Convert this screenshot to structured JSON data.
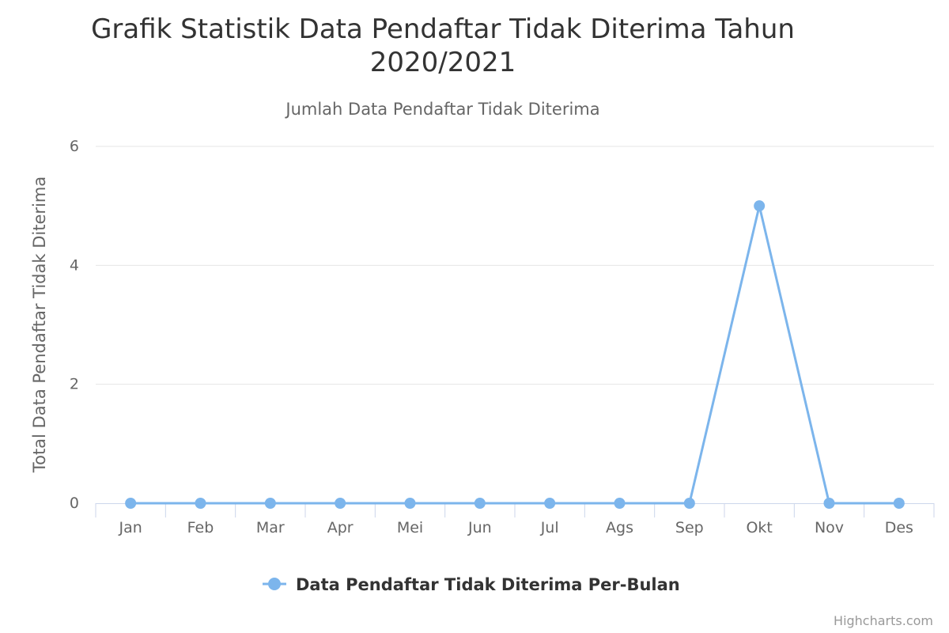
{
  "chart_data": {
    "type": "line",
    "title": "Grafik Statistik Data Pendaftar Tidak Diterima Tahun 2020/2021",
    "title_lines": [
      "Grafik Statistik Data Pendaftar Tidak Diterima Tahun",
      "2020/2021"
    ],
    "subtitle": "Jumlah Data Pendaftar Tidak Diterima",
    "xlabel": "",
    "ylabel": "Total Data Pendaftar Tidak Diterima",
    "categories": [
      "Jan",
      "Feb",
      "Mar",
      "Apr",
      "Mei",
      "Jun",
      "Jul",
      "Ags",
      "Sep",
      "Okt",
      "Nov",
      "Des"
    ],
    "series": [
      {
        "name": "Data Pendaftar Tidak Diterima Per-Bulan",
        "values": [
          0,
          0,
          0,
          0,
          0,
          0,
          0,
          0,
          0,
          5,
          0,
          0
        ],
        "color": "#7cb5ec"
      }
    ],
    "ylim": [
      0,
      6
    ],
    "yticks": [
      0,
      2,
      4,
      6
    ],
    "grid": true,
    "legend": "bottom-center"
  },
  "credits": "Highcharts.com",
  "colors": {
    "grid": "#e6e6e6",
    "axis": "#ccd6eb",
    "series": "#7cb5ec"
  }
}
